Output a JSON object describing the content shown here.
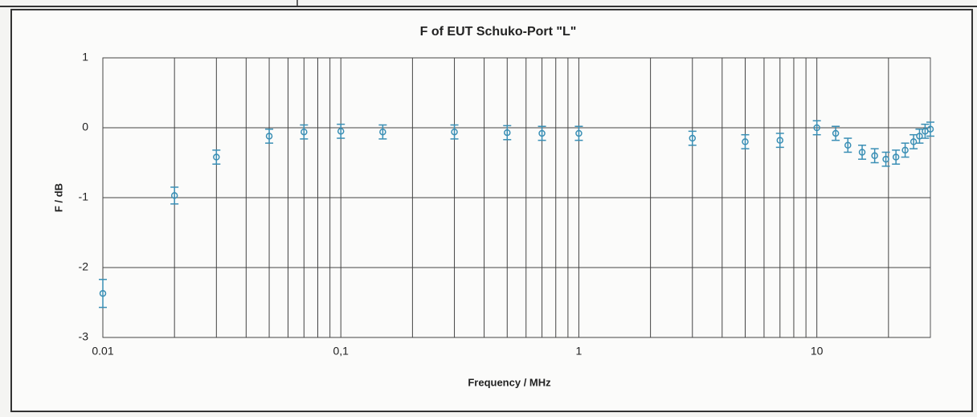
{
  "chart_data": {
    "type": "scatter",
    "title": "F of EUT Schuko-Port \"L\"",
    "xlabel": "Frequency / MHz",
    "ylabel": "F / dB",
    "xscale": "log",
    "xlim": [
      0.01,
      30
    ],
    "ylim": [
      -3,
      1
    ],
    "xticks": [
      0.01,
      {
        "value": 0.1,
        "label": "0,1"
      },
      1,
      10
    ],
    "xgrid": [
      0.02,
      0.03,
      0.04,
      0.05,
      0.06,
      0.07,
      0.08,
      0.09,
      0.2,
      0.3,
      0.4,
      0.5,
      0.6,
      0.7,
      0.8,
      0.9,
      2,
      3,
      4,
      5,
      6,
      7,
      8,
      9,
      20
    ],
    "yticks": [
      -3,
      -2,
      -1,
      0,
      1
    ],
    "grid": true,
    "color": "#3a8fb5",
    "x": [
      0.01,
      0.02,
      0.03,
      0.05,
      0.07,
      0.1,
      0.15,
      0.3,
      0.5,
      0.7,
      1,
      3,
      5,
      7,
      10,
      12,
      13.5,
      15.5,
      17.5,
      19.5,
      21.5,
      23.5,
      25.5,
      27,
      28.5,
      30
    ],
    "values": [
      -2.37,
      -0.97,
      -0.42,
      -0.12,
      -0.06,
      -0.05,
      -0.06,
      -0.06,
      -0.07,
      -0.08,
      -0.08,
      -0.15,
      -0.2,
      -0.18,
      0.0,
      -0.08,
      -0.25,
      -0.35,
      -0.4,
      -0.45,
      -0.42,
      -0.32,
      -0.2,
      -0.12,
      -0.05,
      -0.02
    ],
    "errors": [
      0.2,
      0.12,
      0.1,
      0.1,
      0.1,
      0.1,
      0.1,
      0.1,
      0.1,
      0.1,
      0.1,
      0.1,
      0.1,
      0.1,
      0.1,
      0.1,
      0.1,
      0.1,
      0.1,
      0.1,
      0.1,
      0.1,
      0.1,
      0.1,
      0.1,
      0.1
    ]
  }
}
